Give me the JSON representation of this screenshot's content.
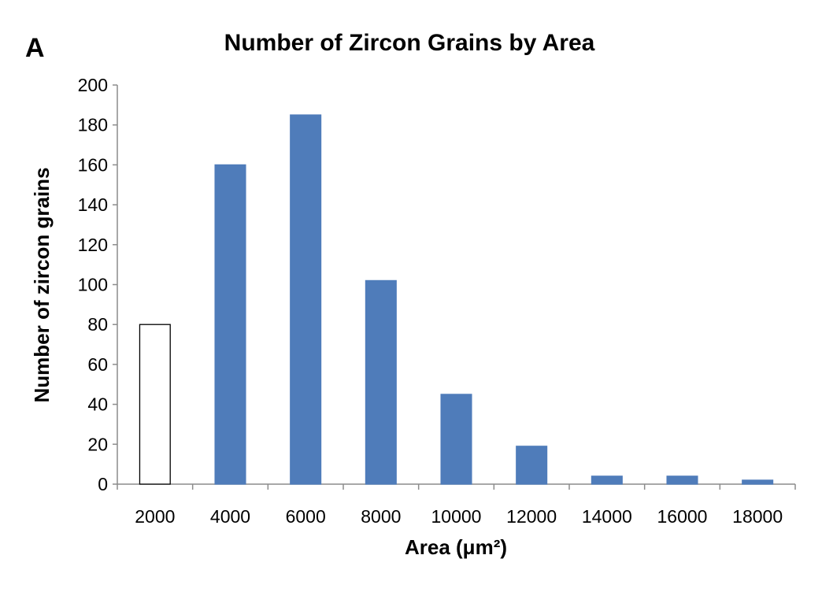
{
  "figure": {
    "panel_label": "A"
  },
  "chart_data": {
    "type": "bar",
    "title": "Number of Zircon Grains by Area",
    "xlabel": "Area (μm²)",
    "ylabel": "Number of zircon grains",
    "categories": [
      "2000",
      "4000",
      "6000",
      "8000",
      "10000",
      "12000",
      "14000",
      "16000",
      "18000"
    ],
    "values": [
      80,
      160,
      185,
      102,
      45,
      19,
      4,
      4,
      2
    ],
    "bar_fill": [
      "#ffffff",
      "#4f7cba",
      "#4f7cba",
      "#4f7cba",
      "#4f7cba",
      "#4f7cba",
      "#4f7cba",
      "#4f7cba",
      "#4f7cba"
    ],
    "bar_stroke": [
      "#000000",
      "#4f7cba",
      "#4f7cba",
      "#4f7cba",
      "#4f7cba",
      "#4f7cba",
      "#4f7cba",
      "#4f7cba",
      "#4f7cba"
    ],
    "ylim": [
      0,
      200
    ],
    "yticks": [
      0,
      20,
      40,
      60,
      80,
      100,
      120,
      140,
      160,
      180,
      200
    ],
    "grid": false,
    "legend": "none"
  }
}
